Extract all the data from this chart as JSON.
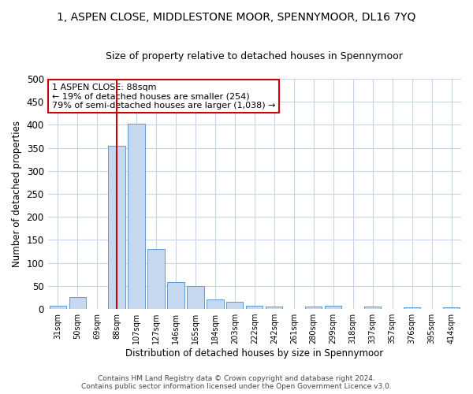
{
  "title": "1, ASPEN CLOSE, MIDDLESTONE MOOR, SPENNYMOOR, DL16 7YQ",
  "subtitle": "Size of property relative to detached houses in Spennymoor",
  "xlabel": "Distribution of detached houses by size in Spennymoor",
  "ylabel": "Number of detached properties",
  "categories": [
    "31sqm",
    "50sqm",
    "69sqm",
    "88sqm",
    "107sqm",
    "127sqm",
    "146sqm",
    "165sqm",
    "184sqm",
    "203sqm",
    "222sqm",
    "242sqm",
    "261sqm",
    "280sqm",
    "299sqm",
    "318sqm",
    "337sqm",
    "357sqm",
    "376sqm",
    "395sqm",
    "414sqm"
  ],
  "values": [
    7,
    25,
    0,
    355,
    403,
    130,
    58,
    50,
    20,
    15,
    7,
    5,
    0,
    6,
    7,
    0,
    6,
    0,
    3,
    0,
    3
  ],
  "bar_color": "#c5d8f0",
  "bar_edge_color": "#5b9bd5",
  "vline_x_idx": 3,
  "vline_color": "#cc0000",
  "annotation_line1": "1 ASPEN CLOSE: 88sqm",
  "annotation_line2": "← 19% of detached houses are smaller (254)",
  "annotation_line3": "79% of semi-detached houses are larger (1,038) →",
  "annotation_box_color": "#ffffff",
  "annotation_box_edge": "#cc0000",
  "ylim": [
    0,
    500
  ],
  "yticks": [
    0,
    50,
    100,
    150,
    200,
    250,
    300,
    350,
    400,
    450,
    500
  ],
  "footer_line1": "Contains HM Land Registry data © Crown copyright and database right 2024.",
  "footer_line2": "Contains public sector information licensed under the Open Government Licence v3.0.",
  "background_color": "#ffffff",
  "grid_color": "#c8d4e8",
  "title_fontsize": 10,
  "subtitle_fontsize": 9
}
